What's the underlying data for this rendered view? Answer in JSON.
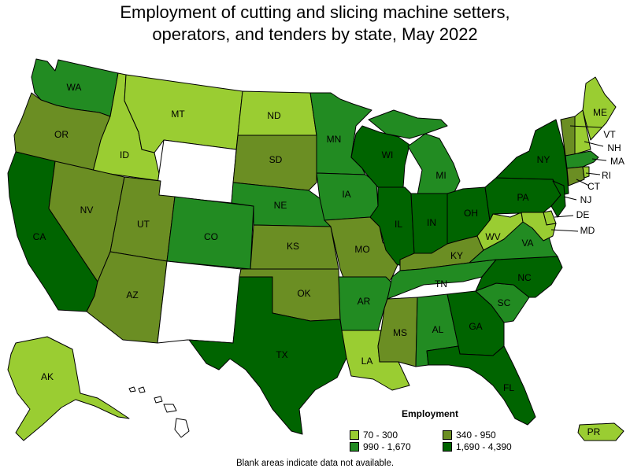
{
  "title": {
    "line1": "Employment of cutting and slicing machine setters,",
    "line2": "operators, and tenders by state, May 2022"
  },
  "colors": {
    "c1": "#9acd32",
    "c2": "#6b8e23",
    "c3": "#228b22",
    "c4": "#006400",
    "na": "#ffffff"
  },
  "legend": {
    "title": "Employment",
    "items": [
      {
        "label": "70 - 300",
        "color": "#9acd32"
      },
      {
        "label": "340 - 950",
        "color": "#6b8e23"
      },
      {
        "label": "990 - 1,670",
        "color": "#228b22"
      },
      {
        "label": "1,690 - 4,390",
        "color": "#006400"
      }
    ]
  },
  "note": "Blank areas indicate data not available.",
  "states": {
    "WA": "c3",
    "OR": "c2",
    "CA": "c4",
    "ID": "c1",
    "NV": "c2",
    "MT": "c1",
    "WY": "na",
    "UT": "c2",
    "AZ": "c2",
    "CO": "c3",
    "NM": "na",
    "ND": "c1",
    "SD": "c2",
    "NE": "c3",
    "KS": "c2",
    "OK": "c2",
    "TX": "c4",
    "MN": "c3",
    "IA": "c3",
    "MO": "c2",
    "AR": "c3",
    "LA": "c1",
    "WI": "c4",
    "IL": "c4",
    "MI": "c3",
    "IN": "c4",
    "OH": "c4",
    "KY": "c2",
    "TN": "c3",
    "MS": "c2",
    "AL": "c3",
    "GA": "c4",
    "FL": "c4",
    "SC": "c3",
    "NC": "c4",
    "VA": "c3",
    "WV": "c1",
    "PA": "c4",
    "NY": "c4",
    "ME": "c1",
    "VT": "c2",
    "NH": "c1",
    "MA": "c3",
    "RI": "c1",
    "CT": "c2",
    "NJ": "c4",
    "DE": "c1",
    "MD": "c1",
    "AK": "c1",
    "HI": "na",
    "PR": "c1"
  },
  "labels": {
    "WA": "WA",
    "OR": "OR",
    "CA": "CA",
    "ID": "ID",
    "NV": "NV",
    "MT": "MT",
    "UT": "UT",
    "AZ": "AZ",
    "CO": "CO",
    "ND": "ND",
    "SD": "SD",
    "NE": "NE",
    "KS": "KS",
    "OK": "OK",
    "TX": "TX",
    "MN": "MN",
    "IA": "IA",
    "MO": "MO",
    "AR": "AR",
    "LA": "LA",
    "WI": "WI",
    "IL": "IL",
    "MI": "MI",
    "IN": "IN",
    "OH": "OH",
    "KY": "KY",
    "TN": "TN",
    "MS": "MS",
    "AL": "AL",
    "GA": "GA",
    "FL": "FL",
    "SC": "SC",
    "NC": "NC",
    "VA": "VA",
    "WV": "WV",
    "PA": "PA",
    "NY": "NY",
    "ME": "ME",
    "VT": "VT",
    "NH": "NH",
    "MA": "MA",
    "RI": "RI",
    "CT": "CT",
    "NJ": "NJ",
    "DE": "DE",
    "MD": "MD",
    "AK": "AK",
    "PR": "PR"
  }
}
